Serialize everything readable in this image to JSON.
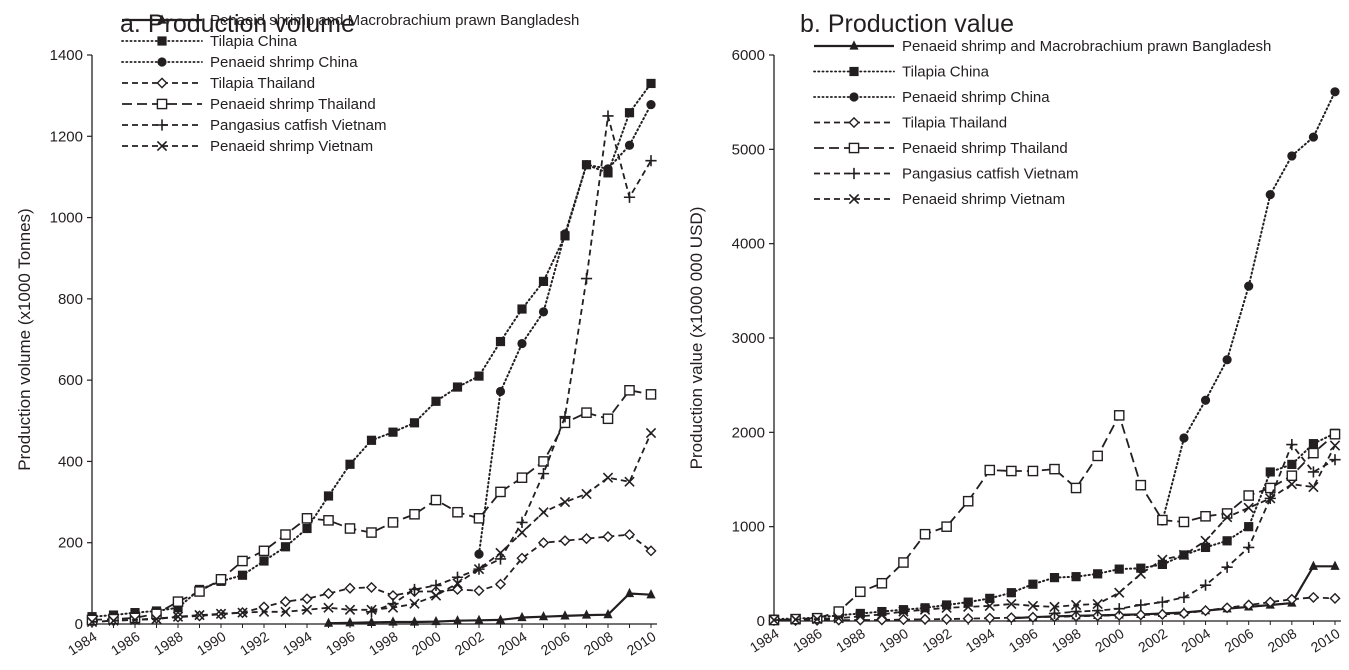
{
  "chart_data": [
    {
      "type": "line",
      "panel_letter": "a.",
      "title": "Production volume",
      "xlabel": "",
      "ylabel": "Production volume  (x1000  Tonnes)",
      "ylim": [
        0,
        1400
      ],
      "yticks": [
        0,
        200,
        400,
        600,
        800,
        1000,
        1200,
        1400
      ],
      "xlim": [
        1984,
        2010
      ],
      "xticks": [
        1984,
        1986,
        1988,
        1990,
        1992,
        1994,
        1996,
        1998,
        2000,
        2002,
        2004,
        2006,
        2008,
        2010
      ],
      "grid": false,
      "legend_position": "top-left",
      "series": [
        {
          "name": "Penaeid shrimp and Macrobrachium prawn Bangladesh",
          "line": "solid",
          "marker": "triangle-filled",
          "x": [
            1995,
            1996,
            1997,
            1998,
            1999,
            2000,
            2001,
            2002,
            2003,
            2004,
            2005,
            2006,
            2007,
            2008,
            2009,
            2010
          ],
          "y": [
            2,
            3,
            4,
            5,
            5,
            6,
            8,
            9,
            10,
            16,
            18,
            20,
            22,
            23,
            75,
            72
          ]
        },
        {
          "name": "Tilapia China",
          "line": "dotted",
          "marker": "square-filled",
          "x": [
            1984,
            1985,
            1986,
            1987,
            1988,
            1989,
            1990,
            1991,
            1992,
            1993,
            1994,
            1995,
            1996,
            1997,
            1998,
            1999,
            2000,
            2001,
            2002,
            2003,
            2004,
            2005,
            2006,
            2007,
            2008,
            2009,
            2010
          ],
          "y": [
            18,
            22,
            28,
            32,
            40,
            85,
            105,
            120,
            155,
            190,
            235,
            315,
            393,
            452,
            472,
            495,
            548,
            583,
            610,
            695,
            775,
            843,
            955,
            1130,
            1110,
            1258,
            1330
          ]
        },
        {
          "name": "Penaeid shrimp China",
          "line": "dotted",
          "marker": "circle-filled",
          "x": [
            2002,
            2003,
            2004,
            2005,
            2006,
            2007,
            2008,
            2009,
            2010
          ],
          "y": [
            172,
            572,
            690,
            768,
            960,
            1130,
            1120,
            1178,
            1278
          ]
        },
        {
          "name": "Tilapia Thailand",
          "line": "dashed",
          "marker": "diamond-open",
          "x": [
            1984,
            1985,
            1986,
            1987,
            1988,
            1989,
            1990,
            1991,
            1992,
            1993,
            1994,
            1995,
            1996,
            1997,
            1998,
            1999,
            2000,
            2001,
            2002,
            2003,
            2004,
            2005,
            2006,
            2007,
            2008,
            2009,
            2010
          ],
          "y": [
            5,
            8,
            10,
            14,
            17,
            20,
            24,
            28,
            42,
            55,
            62,
            75,
            88,
            90,
            70,
            80,
            80,
            85,
            82,
            98,
            162,
            200,
            205,
            210,
            215,
            220,
            180
          ]
        },
        {
          "name": "Penaeid shrimp Thailand",
          "line": "long-dashed",
          "marker": "square-open",
          "x": [
            1984,
            1985,
            1986,
            1987,
            1988,
            1989,
            1990,
            1991,
            1992,
            1993,
            1994,
            1995,
            1996,
            1997,
            1998,
            1999,
            2000,
            2001,
            2002,
            2003,
            2004,
            2005,
            2006,
            2007,
            2008,
            2009,
            2010
          ],
          "y": [
            10,
            12,
            15,
            25,
            55,
            80,
            110,
            155,
            180,
            220,
            260,
            255,
            235,
            225,
            250,
            270,
            305,
            275,
            260,
            325,
            360,
            400,
            495,
            520,
            505,
            575,
            565
          ]
        },
        {
          "name": "Pangasius catfish Vietnam",
          "line": "dashed",
          "marker": "plus",
          "x": [
            1997,
            1998,
            1999,
            2000,
            2001,
            2002,
            2003,
            2004,
            2005,
            2006,
            2007,
            2008,
            2009,
            2010
          ],
          "y": [
            30,
            50,
            85,
            95,
            115,
            135,
            160,
            250,
            370,
            510,
            850,
            1250,
            1050,
            1140
          ]
        },
        {
          "name": "Penaeid shrimp Vietnam",
          "line": "dashed",
          "marker": "x",
          "x": [
            1984,
            1985,
            1986,
            1987,
            1988,
            1989,
            1990,
            1991,
            1992,
            1993,
            1994,
            1995,
            1996,
            1997,
            1998,
            1999,
            2000,
            2001,
            2002,
            2003,
            2004,
            2005,
            2006,
            2007,
            2008,
            2009,
            2010
          ],
          "y": [
            5,
            8,
            10,
            12,
            18,
            22,
            25,
            28,
            30,
            30,
            35,
            40,
            35,
            35,
            40,
            50,
            70,
            100,
            135,
            175,
            225,
            275,
            300,
            320,
            360,
            350,
            470
          ]
        }
      ]
    },
    {
      "type": "line",
      "panel_letter": "b.",
      "title": "Production value",
      "xlabel": "",
      "ylabel": "Production  value  (x1000 000 USD)",
      "ylim": [
        0,
        6000
      ],
      "yticks": [
        0,
        1000,
        2000,
        3000,
        4000,
        5000,
        6000
      ],
      "xlim": [
        1984,
        2010
      ],
      "xticks": [
        1984,
        1986,
        1988,
        1990,
        1992,
        1994,
        1996,
        1998,
        2000,
        2002,
        2004,
        2006,
        2008,
        2010
      ],
      "grid": false,
      "legend_position": "top-left",
      "series": [
        {
          "name": "Penaeid shrimp and Macrobrachium prawn Bangladesh",
          "line": "solid",
          "marker": "triangle-filled",
          "x": [
            1995,
            1996,
            1997,
            1998,
            1999,
            2000,
            2001,
            2002,
            2003,
            2004,
            2005,
            2006,
            2007,
            2008,
            2009,
            2010
          ],
          "y": [
            30,
            40,
            50,
            55,
            60,
            65,
            70,
            80,
            90,
            110,
            130,
            150,
            170,
            190,
            580,
            580
          ]
        },
        {
          "name": "Tilapia China",
          "line": "dotted",
          "marker": "square-filled",
          "x": [
            1984,
            1985,
            1986,
            1987,
            1988,
            1989,
            1990,
            1991,
            1992,
            1993,
            1994,
            1995,
            1996,
            1997,
            1998,
            1999,
            2000,
            2001,
            2002,
            2003,
            2004,
            2005,
            2006,
            2007,
            2008,
            2009,
            2010
          ],
          "y": [
            20,
            25,
            35,
            60,
            80,
            100,
            120,
            140,
            170,
            200,
            240,
            300,
            390,
            460,
            470,
            500,
            550,
            560,
            600,
            700,
            780,
            850,
            1000,
            1580,
            1660,
            1880,
            1990
          ]
        },
        {
          "name": "Penaeid shrimp China",
          "line": "dotted",
          "marker": "circle-filled",
          "x": [
            2002,
            2003,
            2004,
            2005,
            2006,
            2007,
            2008,
            2009,
            2010
          ],
          "y": [
            1060,
            1940,
            2340,
            2770,
            3550,
            4520,
            4930,
            5130,
            5610
          ]
        },
        {
          "name": "Tilapia Thailand",
          "line": "dashed",
          "marker": "diamond-open",
          "x": [
            1984,
            1985,
            1986,
            1987,
            1988,
            1989,
            1990,
            1991,
            1992,
            1993,
            1994,
            1995,
            1996,
            1997,
            1998,
            1999,
            2000,
            2001,
            2002,
            2003,
            2004,
            2005,
            2006,
            2007,
            2008,
            2009,
            2010
          ],
          "y": [
            5,
            5,
            8,
            10,
            10,
            12,
            15,
            18,
            20,
            25,
            30,
            35,
            40,
            45,
            50,
            55,
            60,
            65,
            70,
            80,
            110,
            140,
            170,
            200,
            230,
            250,
            240
          ]
        },
        {
          "name": "Penaeid shrimp Thailand",
          "line": "long-dashed",
          "marker": "square-open",
          "x": [
            1984,
            1985,
            1986,
            1987,
            1988,
            1989,
            1990,
            1991,
            1992,
            1993,
            1994,
            1995,
            1996,
            1997,
            1998,
            1999,
            2000,
            2001,
            2002,
            2003,
            2004,
            2005,
            2006,
            2007,
            2008,
            2009,
            2010
          ],
          "y": [
            10,
            20,
            30,
            100,
            310,
            400,
            620,
            920,
            1000,
            1270,
            1600,
            1590,
            1590,
            1610,
            1410,
            1750,
            2180,
            1440,
            1070,
            1050,
            1110,
            1140,
            1330,
            1410,
            1540,
            1780,
            1980
          ]
        },
        {
          "name": "Pangasius catfish Vietnam",
          "line": "dashed",
          "marker": "plus",
          "x": [
            1997,
            1998,
            1999,
            2000,
            2001,
            2002,
            2003,
            2004,
            2005,
            2006,
            2007,
            2008,
            2009,
            2010
          ],
          "y": [
            80,
            100,
            110,
            130,
            170,
            200,
            250,
            380,
            570,
            780,
            1300,
            1870,
            1580,
            1710
          ]
        },
        {
          "name": "Penaeid shrimp Vietnam",
          "line": "dashed",
          "marker": "x",
          "x": [
            1984,
            1985,
            1986,
            1987,
            1988,
            1989,
            1990,
            1991,
            1992,
            1993,
            1994,
            1995,
            1996,
            1997,
            1998,
            1999,
            2000,
            2001,
            2002,
            2003,
            2004,
            2005,
            2006,
            2007,
            2008,
            2009,
            2010
          ],
          "y": [
            10,
            15,
            20,
            30,
            50,
            70,
            100,
            120,
            140,
            150,
            160,
            180,
            160,
            150,
            170,
            180,
            300,
            500,
            650,
            700,
            850,
            1100,
            1200,
            1300,
            1450,
            1420,
            1860
          ]
        }
      ]
    }
  ]
}
